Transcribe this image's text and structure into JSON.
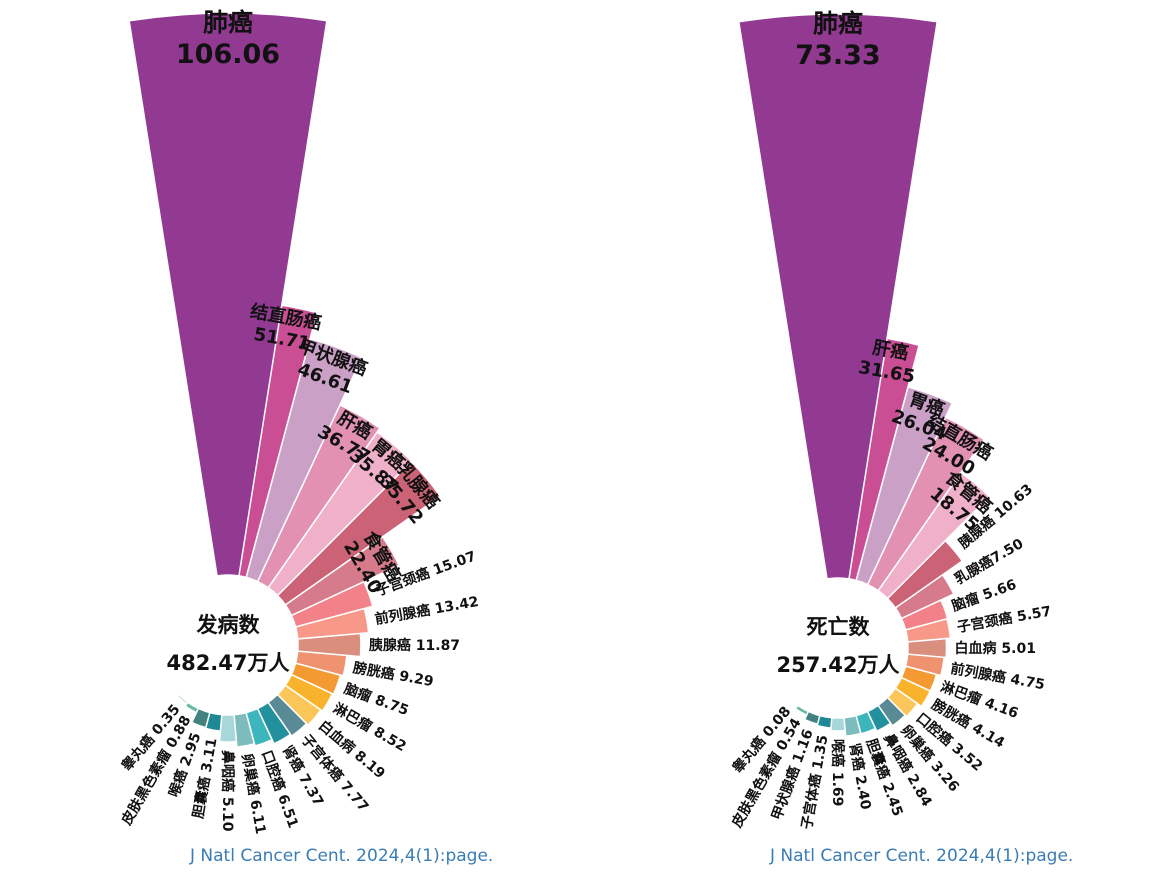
{
  "chart_data": [
    {
      "type": "rose",
      "center_label": "发病数",
      "total_label": "482.47万人",
      "source": "J Natl Cancer Cent. 2024,4(1):page.",
      "slices": [
        {
          "name": "肺癌",
          "value": 106.06,
          "label": "肺癌",
          "value_text": "106.06",
          "color": "#923a92"
        },
        {
          "name": "结直肠癌",
          "value": 51.71,
          "label": "结直肠癌",
          "value_text": "51.71",
          "color": "#c94e94"
        },
        {
          "name": "甲状腺癌",
          "value": 46.61,
          "label": "甲状腺癌",
          "value_text": "46.61",
          "color": "#cba0c7"
        },
        {
          "name": "肝癌",
          "value": 36.77,
          "label": "肝癌",
          "value_text": "36.77",
          "color": "#e291b2"
        },
        {
          "name": "胃癌",
          "value": 35.87,
          "label": "胃癌",
          "value_text": "35.87",
          "color": "#f0b0c8"
        },
        {
          "name": "乳腺癌",
          "value": 35.72,
          "label": "乳腺癌",
          "value_text": "35.72",
          "color": "#cc6275"
        },
        {
          "name": "食管癌",
          "value": 22.4,
          "label": "食管癌",
          "value_text": "22.40",
          "color": "#d57b8c"
        },
        {
          "name": "子宫颈癌",
          "value": 15.07,
          "label": "子宫颈癌 15.07",
          "color": "#f28189"
        },
        {
          "name": "前列腺癌",
          "value": 13.42,
          "label": "前列腺癌 13.42",
          "color": "#f79888"
        },
        {
          "name": "胰腺癌",
          "value": 11.87,
          "label": "胰腺癌 11.87",
          "color": "#d98e7e"
        },
        {
          "name": "膀胱癌",
          "value": 9.29,
          "label": "膀胱癌 9.29",
          "color": "#ee9270"
        },
        {
          "name": "脑瘤",
          "value": 8.75,
          "label": "脑瘤 8.75",
          "color": "#f39a33"
        },
        {
          "name": "淋巴瘤",
          "value": 8.52,
          "label": "淋巴瘤 8.52",
          "color": "#f9b22c"
        },
        {
          "name": "白血病",
          "value": 8.19,
          "label": "白血病 8.19",
          "color": "#fbc659"
        },
        {
          "name": "子宫体癌",
          "value": 7.77,
          "label": "子宫体癌 7.77",
          "color": "#5a8a95"
        },
        {
          "name": "肾癌",
          "value": 7.37,
          "label": "肾癌 7.37",
          "color": "#22909d"
        },
        {
          "name": "口腔癌",
          "value": 6.51,
          "label": "口腔癌 6.51",
          "color": "#3db5bd"
        },
        {
          "name": "卵巢癌",
          "value": 6.11,
          "label": "卵巢癌 6.11",
          "color": "#7cbcbc"
        },
        {
          "name": "鼻咽癌",
          "value": 5.1,
          "label": "鼻咽癌 5.10",
          "color": "#a7d7d8"
        },
        {
          "name": "胆囊癌",
          "value": 3.11,
          "label": "胆囊癌 3.11",
          "color": "#1f8896"
        },
        {
          "name": "喉癌",
          "value": 2.95,
          "label": "喉癌 2.95",
          "color": "#42827f"
        },
        {
          "name": "皮肤黑色素瘤",
          "value": 0.88,
          "label": "皮肤黑色素瘤 0.88",
          "color": "#66b9a3"
        },
        {
          "name": "睾丸癌",
          "value": 0.35,
          "label": "睾丸癌 0.35",
          "color": "#4cae63"
        }
      ]
    },
    {
      "type": "rose",
      "center_label": "死亡数",
      "total_label": "257.42万人",
      "source": "J Natl Cancer Cent. 2024,4(1):page.",
      "slices": [
        {
          "name": "肺癌",
          "value": 73.33,
          "label": "肺癌",
          "value_text": "73.33",
          "color": "#923a92"
        },
        {
          "name": "肝癌",
          "value": 31.65,
          "label": "肝癌",
          "value_text": "31.65",
          "color": "#c94e94"
        },
        {
          "name": "胃癌",
          "value": 26.04,
          "label": "胃癌",
          "value_text": "26.04",
          "color": "#cba0c7"
        },
        {
          "name": "结直肠癌",
          "value": 24.0,
          "label": "结直肠癌",
          "value_text": "24.00",
          "color": "#e291b2"
        },
        {
          "name": "食管癌",
          "value": 18.75,
          "label": "食管癌",
          "value_text": "18.75",
          "color": "#f0b0c8"
        },
        {
          "name": "胰腺癌",
          "value": 10.63,
          "label": "胰腺癌 10.63",
          "color": "#cc6275"
        },
        {
          "name": "乳腺癌",
          "value": 7.5,
          "label": "乳腺癌7.50",
          "color": "#d57b8c"
        },
        {
          "name": "脑瘤",
          "value": 5.66,
          "label": "脑瘤  5.66",
          "color": "#f28189"
        },
        {
          "name": "子宫颈癌",
          "value": 5.57,
          "label": "子宫颈癌 5.57",
          "color": "#f79888"
        },
        {
          "name": "白血病",
          "value": 5.01,
          "label": "白血病 5.01",
          "color": "#d98e7e"
        },
        {
          "name": "前列腺癌",
          "value": 4.75,
          "label": "前列腺癌 4.75",
          "color": "#ee9270"
        },
        {
          "name": "淋巴瘤",
          "value": 4.16,
          "label": "淋巴瘤 4.16",
          "color": "#f39a33"
        },
        {
          "name": "膀胱癌",
          "value": 4.14,
          "label": "膀胱癌 4.14",
          "color": "#f9b22c"
        },
        {
          "name": "口腔癌",
          "value": 3.52,
          "label": "口腔癌 3.52",
          "color": "#fbc659"
        },
        {
          "name": "卵巢癌",
          "value": 3.26,
          "label": "卵巢癌 3.26",
          "color": "#5a8a95"
        },
        {
          "name": "鼻咽癌",
          "value": 2.84,
          "label": "鼻咽癌 2.84",
          "color": "#22909d"
        },
        {
          "name": "胆囊癌",
          "value": 2.45,
          "label": "胆囊癌 2.45",
          "color": "#3db5bd"
        },
        {
          "name": "肾癌",
          "value": 2.4,
          "label": "肾癌 2.40",
          "color": "#7cbcbc"
        },
        {
          "name": "喉癌",
          "value": 1.69,
          "label": "喉癌 1.69",
          "color": "#a7d7d8"
        },
        {
          "name": "子宫体癌",
          "value": 1.35,
          "label": "子宫体癌 1.35",
          "color": "#1f8896"
        },
        {
          "name": "甲状腺癌",
          "value": 1.16,
          "label": "甲状腺癌 1.16",
          "color": "#42827f"
        },
        {
          "name": "皮肤黑色素瘤",
          "value": 0.54,
          "label": "皮肤黑色素瘤 0.54",
          "color": "#66b9a3"
        },
        {
          "name": "睾丸癌",
          "value": 0.08,
          "label": "睾丸癌 0.08",
          "color": "#4cae63"
        }
      ]
    }
  ]
}
